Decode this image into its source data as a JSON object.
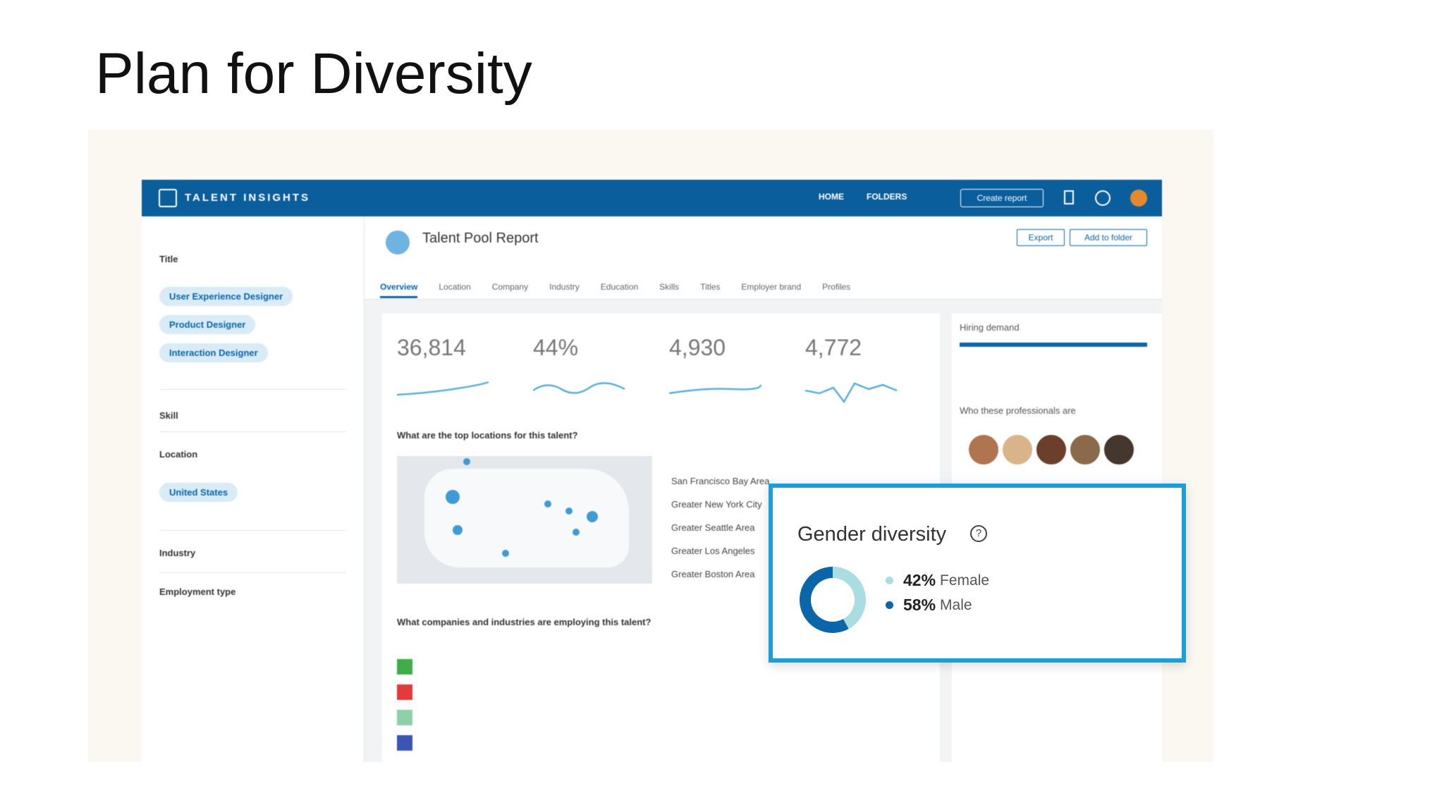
{
  "slide": {
    "title": "Plan for Diversity"
  },
  "app": {
    "brand": "TALENT INSIGHTS",
    "nav": [
      "HOME",
      "FOLDERS"
    ],
    "create_button": "Create report"
  },
  "sidebar": {
    "title_heading": "Title",
    "title_tags": [
      "User Experience Designer",
      "Product Designer",
      "Interaction Designer"
    ],
    "skill": "Skill",
    "location_heading": "Location",
    "location_tags": [
      "United States"
    ],
    "industry": "Industry",
    "employment_type": "Employment type"
  },
  "report": {
    "title": "Talent Pool Report",
    "buttons": [
      "Export",
      "Add to folder"
    ],
    "tabs": [
      "Overview",
      "Location",
      "Company",
      "Industry",
      "Education",
      "Skills",
      "Titles",
      "Employer brand",
      "Profiles"
    ],
    "stats": [
      "36,814",
      "44%",
      "4,930",
      "4,772"
    ],
    "locations_question": "What are the top locations for this talent?",
    "top_locations": [
      "San Francisco Bay Area",
      "Greater New York City",
      "Greater Seattle Area",
      "Greater Los Angeles",
      "Greater Boston Area"
    ],
    "companies_question": "What companies and industries are employing this talent?",
    "hiring_demand": "Hiring demand",
    "who_heading": "Who these professionals are"
  },
  "gender_diversity": {
    "title": "Gender diversity",
    "segments": [
      {
        "name": "Female",
        "value": 42,
        "value_label": "42%",
        "color": "#a9dde2"
      },
      {
        "name": "Male",
        "value": 58,
        "value_label": "58%",
        "color": "#0a66a8"
      }
    ]
  }
}
